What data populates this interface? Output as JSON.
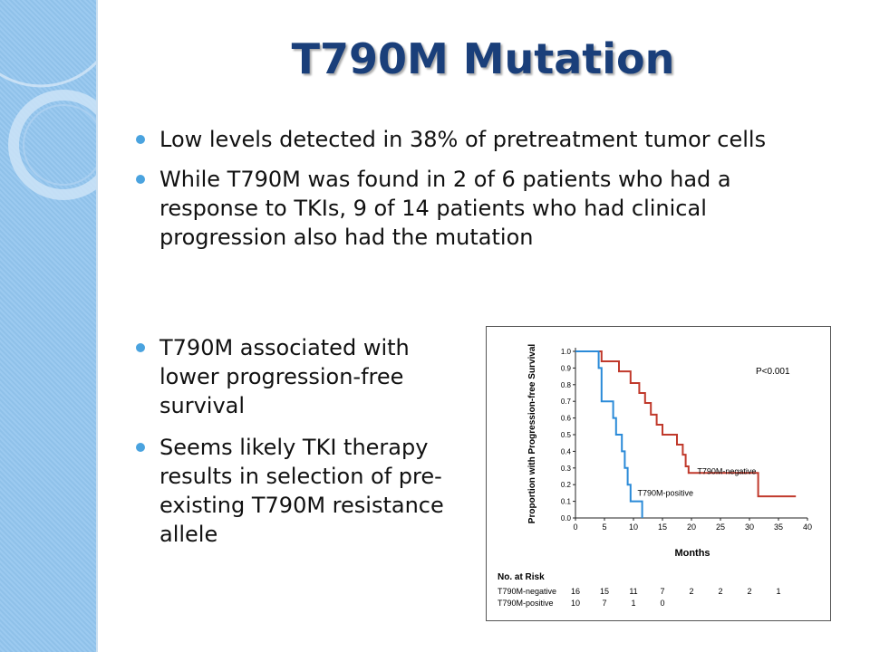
{
  "slide": {
    "title": "T790M Mutation",
    "bullets": [
      "Low levels detected in 38% of pretreatment tumor cells",
      "While T790M was found in 2 of 6 patients who had a response to TKIs, 9 of 14 patients who had clinical progression also had the mutation"
    ],
    "bullets_lower": [
      "T790M associated with lower progression-free survival",
      "Seems likely TKI therapy results in selection of pre-existing T790M resistance allele"
    ],
    "accent_color": "#4aa3df",
    "title_color": "#1a3f7a"
  },
  "chart_data": {
    "type": "line",
    "ylabel": "Proportion with Progression-free Survival",
    "xlabel": "Months",
    "xlim": [
      0,
      40
    ],
    "ylim": [
      0,
      1.0
    ],
    "x_ticks": [
      "0",
      "5",
      "10",
      "15",
      "20",
      "25",
      "30",
      "35",
      "40"
    ],
    "y_ticks": [
      "0.0",
      "0.1",
      "0.2",
      "0.3",
      "0.4",
      "0.5",
      "0.6",
      "0.7",
      "0.8",
      "0.9",
      "1.0"
    ],
    "annotation": "P<0.001",
    "series": [
      {
        "name": "T790M-negative",
        "color": "#c0392b",
        "points": [
          [
            0,
            1.0
          ],
          [
            4.5,
            1.0
          ],
          [
            4.5,
            0.94
          ],
          [
            7.5,
            0.94
          ],
          [
            7.5,
            0.88
          ],
          [
            9.5,
            0.88
          ],
          [
            9.5,
            0.81
          ],
          [
            11,
            0.81
          ],
          [
            11,
            0.75
          ],
          [
            12,
            0.75
          ],
          [
            12,
            0.69
          ],
          [
            13,
            0.69
          ],
          [
            13,
            0.62
          ],
          [
            14,
            0.62
          ],
          [
            14,
            0.56
          ],
          [
            15,
            0.56
          ],
          [
            15,
            0.5
          ],
          [
            17.5,
            0.5
          ],
          [
            17.5,
            0.44
          ],
          [
            18.5,
            0.44
          ],
          [
            18.5,
            0.38
          ],
          [
            19,
            0.38
          ],
          [
            19,
            0.31
          ],
          [
            19.5,
            0.31
          ],
          [
            19.5,
            0.27
          ],
          [
            31.5,
            0.27
          ],
          [
            31.5,
            0.13
          ],
          [
            38,
            0.13
          ]
        ]
      },
      {
        "name": "T790M-positive",
        "color": "#2a8ad8",
        "points": [
          [
            0,
            1.0
          ],
          [
            4,
            1.0
          ],
          [
            4,
            0.9
          ],
          [
            4.5,
            0.9
          ],
          [
            4.5,
            0.7
          ],
          [
            6.5,
            0.7
          ],
          [
            6.5,
            0.6
          ],
          [
            7,
            0.6
          ],
          [
            7,
            0.5
          ],
          [
            8,
            0.5
          ],
          [
            8,
            0.4
          ],
          [
            8.5,
            0.4
          ],
          [
            8.5,
            0.3
          ],
          [
            9,
            0.3
          ],
          [
            9,
            0.2
          ],
          [
            9.5,
            0.2
          ],
          [
            9.5,
            0.1
          ],
          [
            11.5,
            0.1
          ],
          [
            11.5,
            0.0
          ]
        ]
      }
    ],
    "risk_table": {
      "title": "No. at Risk",
      "x": [
        0,
        5,
        10,
        15,
        20,
        25,
        30,
        35
      ],
      "rows": [
        {
          "label": "T790M-negative",
          "values": [
            "16",
            "15",
            "11",
            "7",
            "2",
            "2",
            "2",
            "1"
          ]
        },
        {
          "label": "T790M-positive",
          "values": [
            "10",
            "7",
            "1",
            "0",
            "",
            "",
            "",
            ""
          ]
        }
      ]
    }
  }
}
